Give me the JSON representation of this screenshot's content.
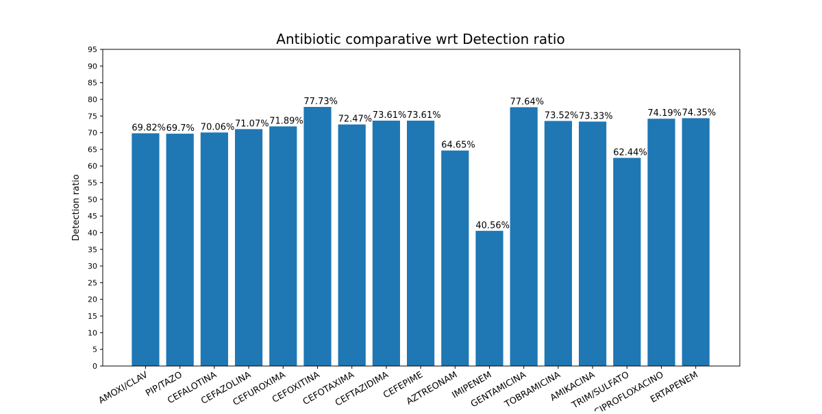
{
  "chart_data": {
    "type": "bar",
    "title": "Antibiotic comparative wrt Detection ratio",
    "xlabel": "",
    "ylabel": "Detection ratio",
    "ylim": [
      0,
      95
    ],
    "ytick_step": 5,
    "grid": false,
    "bar_color": "#1f77b4",
    "categories": [
      "AMOXI/CLAV",
      "PIP/TAZO",
      "CEFALOTINA",
      "CEFAZOLINA",
      "CEFUROXIMA",
      "CEFOXITINA",
      "CEFOTAXIMA",
      "CEFTAZIDIMA",
      "CEFEPIME",
      "AZTREONAM",
      "IMIPENEM",
      "GENTAMICINA",
      "TOBRAMICINA",
      "AMIKACINA",
      "TRIM/SULFATO",
      "CIPROFLOXACINO",
      "ERTAPENEM"
    ],
    "values": [
      69.82,
      69.7,
      70.06,
      71.07,
      71.89,
      77.73,
      72.47,
      73.61,
      73.61,
      64.65,
      40.56,
      77.64,
      73.52,
      73.33,
      62.44,
      74.19,
      74.35
    ],
    "data_labels": [
      "69.82%",
      "69.7%",
      "70.06%",
      "71.07%",
      "71.89%",
      "77.73%",
      "72.47%",
      "73.61%",
      "73.61%",
      "64.65%",
      "40.56%",
      "77.64%",
      "73.52%",
      "73.33%",
      "62.44%",
      "74.19%",
      "74.35%"
    ]
  }
}
